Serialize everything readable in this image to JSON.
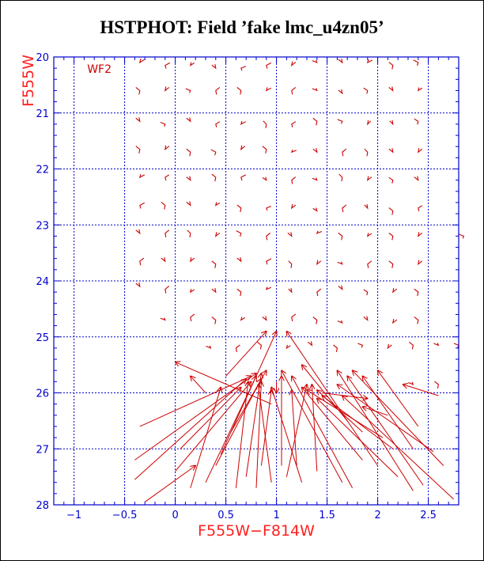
{
  "title": "HSTPHOT: Field ’fake lmc_u4zn05’",
  "chart_data": {
    "type": "scatter",
    "title": "HSTPHOT: Field ’fake lmc_u4zn05’",
    "xlabel": "F555W−F814W",
    "ylabel": "F555W",
    "xlim": [
      -1.2,
      2.8
    ],
    "ylim": [
      28,
      20
    ],
    "xticks": [
      -1,
      -0.5,
      0,
      0.5,
      1,
      1.5,
      2,
      2.5
    ],
    "xtick_labels": [
      "−1",
      "−0.5",
      "0",
      "0.5",
      "1",
      "1.5",
      "2",
      "2.5"
    ],
    "yticks": [
      20,
      21,
      22,
      23,
      24,
      25,
      26,
      27,
      28
    ],
    "ytick_labels": [
      "20",
      "21",
      "22",
      "23",
      "24",
      "25",
      "26",
      "27",
      "28"
    ],
    "grid": true,
    "annotation": "WF2",
    "colors": {
      "axis": "#0000cc",
      "data": "#cc0000",
      "label": "#ff2020",
      "title": "#000000"
    },
    "arrows": [
      {
        "x": -0.4,
        "y": 27.55,
        "tx": 0.7,
        "ty": 25.75
      },
      {
        "x": -0.35,
        "y": 26.6,
        "tx": 0.75,
        "ty": 25.7
      },
      {
        "x": -0.3,
        "y": 27.95,
        "tx": 0.2,
        "ty": 27.3
      },
      {
        "x": -0.4,
        "y": 27.2,
        "tx": 0.8,
        "ty": 25.65
      },
      {
        "x": 0.0,
        "y": 27.4,
        "tx": 0.75,
        "ty": 25.8
      },
      {
        "x": 0.05,
        "y": 27.0,
        "tx": 0.65,
        "ty": 25.9
      },
      {
        "x": 0.15,
        "y": 27.7,
        "tx": 0.45,
        "ty": 25.9
      },
      {
        "x": 0.3,
        "y": 27.6,
        "tx": 0.8,
        "ty": 25.7
      },
      {
        "x": 0.4,
        "y": 27.3,
        "tx": 0.85,
        "ty": 25.75
      },
      {
        "x": 0.45,
        "y": 27.1,
        "tx": 1.0,
        "ty": 24.9
      },
      {
        "x": 0.55,
        "y": 26.7,
        "tx": 0.9,
        "ty": 25.6
      },
      {
        "x": 0.5,
        "y": 25.7,
        "tx": 0.9,
        "ty": 24.9
      },
      {
        "x": 0.6,
        "y": 27.7,
        "tx": 0.72,
        "ty": 25.8
      },
      {
        "x": 0.7,
        "y": 27.5,
        "tx": 0.85,
        "ty": 25.65
      },
      {
        "x": 0.8,
        "y": 27.7,
        "tx": 0.85,
        "ty": 25.8
      },
      {
        "x": 0.85,
        "y": 27.3,
        "tx": 0.95,
        "ty": 25.95
      },
      {
        "x": 0.95,
        "y": 27.6,
        "tx": 0.82,
        "ty": 25.85
      },
      {
        "x": 1.05,
        "y": 27.3,
        "tx": 1.05,
        "ty": 25.7
      },
      {
        "x": 1.1,
        "y": 27.5,
        "tx": 1.3,
        "ty": 25.85
      },
      {
        "x": 1.2,
        "y": 27.3,
        "tx": 1.15,
        "ty": 25.95
      },
      {
        "x": 1.25,
        "y": 27.6,
        "tx": 0.95,
        "ty": 25.9
      },
      {
        "x": 1.4,
        "y": 27.4,
        "tx": 1.35,
        "ty": 25.85
      },
      {
        "x": 1.65,
        "y": 27.6,
        "tx": 1.05,
        "ty": 25.6
      },
      {
        "x": 1.75,
        "y": 27.7,
        "tx": 1.15,
        "ty": 25.7
      },
      {
        "x": 1.85,
        "y": 27.2,
        "tx": 1.25,
        "ty": 25.9
      },
      {
        "x": 1.85,
        "y": 26.7,
        "tx": 1.4,
        "ty": 25.95
      },
      {
        "x": 2.05,
        "y": 26.8,
        "tx": 1.3,
        "ty": 25.95
      },
      {
        "x": 2.15,
        "y": 27.0,
        "tx": 1.45,
        "ty": 26.05
      },
      {
        "x": 2.2,
        "y": 27.5,
        "tx": 1.4,
        "ty": 26.1
      },
      {
        "x": 2.35,
        "y": 27.75,
        "tx": 1.6,
        "ty": 25.6
      },
      {
        "x": 2.45,
        "y": 27.65,
        "tx": 1.7,
        "ty": 25.7
      },
      {
        "x": 2.55,
        "y": 27.05,
        "tx": 1.6,
        "ty": 25.85
      },
      {
        "x": 2.65,
        "y": 27.3,
        "tx": 1.75,
        "ty": 25.6
      },
      {
        "x": 2.75,
        "y": 27.9,
        "tx": 1.65,
        "ty": 26.05
      },
      {
        "x": 2.35,
        "y": 27.0,
        "tx": 1.85,
        "ty": 25.7
      },
      {
        "x": 2.4,
        "y": 26.6,
        "tx": 2.0,
        "ty": 25.6
      },
      {
        "x": 2.6,
        "y": 26.05,
        "tx": 2.25,
        "ty": 25.85
      },
      {
        "x": 2.0,
        "y": 27.3,
        "tx": 1.1,
        "ty": 24.9
      },
      {
        "x": 1.7,
        "y": 26.5,
        "tx": 1.25,
        "ty": 25.5
      },
      {
        "x": 1.45,
        "y": 26.0,
        "tx": 1.9,
        "ty": 26.1
      },
      {
        "x": 1.0,
        "y": 25.8,
        "tx": 1.0,
        "ty": 26.0
      },
      {
        "x": 0.3,
        "y": 26.0,
        "tx": 0.15,
        "ty": 25.7
      },
      {
        "x": 0.95,
        "y": 26.2,
        "tx": 0.0,
        "ty": 25.45
      },
      {
        "x": 2.1,
        "y": 26.4,
        "tx": 1.85,
        "ty": 26.25
      }
    ],
    "markers": [
      {
        "x": -0.35,
        "y": 20.1,
        "dx": 6,
        "dy": -5
      },
      {
        "x": -0.1,
        "y": 20.15,
        "dx": 6,
        "dy": 4
      },
      {
        "x": 0.15,
        "y": 20.15,
        "dx": 5,
        "dy": -4
      },
      {
        "x": 0.4,
        "y": 20.2,
        "dx": -5,
        "dy": -5
      },
      {
        "x": 0.65,
        "y": 20.2,
        "dx": 6,
        "dy": 3
      },
      {
        "x": 0.9,
        "y": 20.15,
        "dx": 6,
        "dy": 4
      },
      {
        "x": 1.15,
        "y": 20.15,
        "dx": 5,
        "dy": -5
      },
      {
        "x": 1.4,
        "y": 20.1,
        "dx": -6,
        "dy": -3
      },
      {
        "x": 1.65,
        "y": 20.1,
        "dx": -5,
        "dy": -5
      },
      {
        "x": 1.9,
        "y": 20.1,
        "dx": 6,
        "dy": -4
      },
      {
        "x": 2.15,
        "y": 20.15,
        "dx": -5,
        "dy": 5
      },
      {
        "x": 2.4,
        "y": 20.1,
        "dx": -6,
        "dy": 4
      },
      {
        "x": -0.35,
        "y": 20.6,
        "dx": -5,
        "dy": 5
      },
      {
        "x": -0.1,
        "y": 20.6,
        "dx": 5,
        "dy": -5
      },
      {
        "x": 0.15,
        "y": 20.6,
        "dx": -6,
        "dy": 3
      },
      {
        "x": 0.4,
        "y": 20.6,
        "dx": 5,
        "dy": 5
      },
      {
        "x": 0.65,
        "y": 20.6,
        "dx": -5,
        "dy": 5
      },
      {
        "x": 0.9,
        "y": 20.6,
        "dx": 6,
        "dy": -4
      },
      {
        "x": 1.15,
        "y": 20.6,
        "dx": 5,
        "dy": 5
      },
      {
        "x": 1.4,
        "y": 20.6,
        "dx": -6,
        "dy": -3
      },
      {
        "x": 1.65,
        "y": 20.65,
        "dx": -5,
        "dy": -5
      },
      {
        "x": 1.9,
        "y": 20.6,
        "dx": -5,
        "dy": 4
      },
      {
        "x": 2.15,
        "y": 20.6,
        "dx": -5,
        "dy": -5
      },
      {
        "x": 2.4,
        "y": 20.6,
        "dx": 5,
        "dy": -4
      },
      {
        "x": -0.35,
        "y": 21.15,
        "dx": -5,
        "dy": -5
      },
      {
        "x": -0.1,
        "y": 21.2,
        "dx": -6,
        "dy": 3
      },
      {
        "x": 0.15,
        "y": 21.15,
        "dx": -5,
        "dy": -5
      },
      {
        "x": 0.4,
        "y": 21.2,
        "dx": 5,
        "dy": 4
      },
      {
        "x": 0.65,
        "y": 21.2,
        "dx": 6,
        "dy": -4
      },
      {
        "x": 0.9,
        "y": 21.2,
        "dx": -4,
        "dy": 5
      },
      {
        "x": 1.15,
        "y": 21.2,
        "dx": 5,
        "dy": 4
      },
      {
        "x": 1.4,
        "y": 21.15,
        "dx": -5,
        "dy": 5
      },
      {
        "x": 1.65,
        "y": 21.15,
        "dx": -6,
        "dy": 3
      },
      {
        "x": 1.9,
        "y": 21.2,
        "dx": 4,
        "dy": -5
      },
      {
        "x": 2.15,
        "y": 21.2,
        "dx": -4,
        "dy": -5
      },
      {
        "x": 2.4,
        "y": 21.15,
        "dx": -5,
        "dy": 4
      },
      {
        "x": -0.35,
        "y": 21.65,
        "dx": -5,
        "dy": 5
      },
      {
        "x": -0.1,
        "y": 21.65,
        "dx": 5,
        "dy": -5
      },
      {
        "x": 0.15,
        "y": 21.7,
        "dx": -5,
        "dy": 5
      },
      {
        "x": 0.4,
        "y": 21.7,
        "dx": -6,
        "dy": 4
      },
      {
        "x": 0.65,
        "y": 21.65,
        "dx": 5,
        "dy": -5
      },
      {
        "x": 0.9,
        "y": 21.65,
        "dx": -5,
        "dy": 5
      },
      {
        "x": 1.15,
        "y": 21.7,
        "dx": 6,
        "dy": -3
      },
      {
        "x": 1.4,
        "y": 21.7,
        "dx": -5,
        "dy": -5
      },
      {
        "x": 1.65,
        "y": 21.7,
        "dx": 5,
        "dy": 5
      },
      {
        "x": 1.9,
        "y": 21.7,
        "dx": -4,
        "dy": 5
      },
      {
        "x": 2.15,
        "y": 21.7,
        "dx": -5,
        "dy": -5
      },
      {
        "x": 2.4,
        "y": 21.7,
        "dx": 5,
        "dy": -5
      },
      {
        "x": -0.35,
        "y": 22.15,
        "dx": 6,
        "dy": -4
      },
      {
        "x": -0.1,
        "y": 22.15,
        "dx": 5,
        "dy": 4
      },
      {
        "x": 0.15,
        "y": 22.2,
        "dx": -5,
        "dy": -5
      },
      {
        "x": 0.4,
        "y": 22.15,
        "dx": -5,
        "dy": 5
      },
      {
        "x": 0.65,
        "y": 22.15,
        "dx": 6,
        "dy": 4
      },
      {
        "x": 0.9,
        "y": 22.2,
        "dx": -5,
        "dy": -4
      },
      {
        "x": 1.15,
        "y": 22.2,
        "dx": 5,
        "dy": 5
      },
      {
        "x": 1.4,
        "y": 22.2,
        "dx": -6,
        "dy": -3
      },
      {
        "x": 1.65,
        "y": 22.15,
        "dx": -4,
        "dy": 5
      },
      {
        "x": 1.9,
        "y": 22.2,
        "dx": 5,
        "dy": -5
      },
      {
        "x": 2.15,
        "y": 22.2,
        "dx": -5,
        "dy": 4
      },
      {
        "x": 2.4,
        "y": 22.2,
        "dx": -5,
        "dy": -5
      },
      {
        "x": -0.35,
        "y": 22.65,
        "dx": 6,
        "dy": 4
      },
      {
        "x": -0.1,
        "y": 22.65,
        "dx": -5,
        "dy": 5
      },
      {
        "x": 0.15,
        "y": 22.65,
        "dx": -5,
        "dy": -5
      },
      {
        "x": 0.4,
        "y": 22.65,
        "dx": 5,
        "dy": -4
      },
      {
        "x": 0.65,
        "y": 22.7,
        "dx": -5,
        "dy": 5
      },
      {
        "x": 0.9,
        "y": 22.7,
        "dx": 6,
        "dy": 3
      },
      {
        "x": 1.15,
        "y": 22.7,
        "dx": 5,
        "dy": -5
      },
      {
        "x": 1.4,
        "y": 22.75,
        "dx": -5,
        "dy": -4
      },
      {
        "x": 1.65,
        "y": 22.7,
        "dx": 5,
        "dy": 5
      },
      {
        "x": 1.9,
        "y": 22.7,
        "dx": -4,
        "dy": -5
      },
      {
        "x": 2.15,
        "y": 22.75,
        "dx": -5,
        "dy": 5
      },
      {
        "x": 2.4,
        "y": 22.7,
        "dx": 5,
        "dy": 4
      },
      {
        "x": -0.35,
        "y": 23.15,
        "dx": -5,
        "dy": -5
      },
      {
        "x": -0.1,
        "y": 23.15,
        "dx": 5,
        "dy": 5
      },
      {
        "x": 0.15,
        "y": 23.15,
        "dx": -4,
        "dy": 5
      },
      {
        "x": 0.4,
        "y": 23.2,
        "dx": 5,
        "dy": -5
      },
      {
        "x": 0.65,
        "y": 23.15,
        "dx": -6,
        "dy": 4
      },
      {
        "x": 0.9,
        "y": 23.2,
        "dx": 5,
        "dy": 5
      },
      {
        "x": 1.15,
        "y": 23.2,
        "dx": -5,
        "dy": -5
      },
      {
        "x": 1.4,
        "y": 23.15,
        "dx": 6,
        "dy": -3
      },
      {
        "x": 1.65,
        "y": 23.2,
        "dx": -5,
        "dy": 5
      },
      {
        "x": 1.9,
        "y": 23.2,
        "dx": 5,
        "dy": -4
      },
      {
        "x": 2.15,
        "y": 23.2,
        "dx": -5,
        "dy": 5
      },
      {
        "x": 2.4,
        "y": 23.2,
        "dx": 5,
        "dy": -5
      },
      {
        "x": -0.35,
        "y": 23.65,
        "dx": 5,
        "dy": 5
      },
      {
        "x": -0.1,
        "y": 23.65,
        "dx": -5,
        "dy": -5
      },
      {
        "x": 0.15,
        "y": 23.65,
        "dx": 5,
        "dy": -5
      },
      {
        "x": 0.4,
        "y": 23.7,
        "dx": -5,
        "dy": 5
      },
      {
        "x": 0.65,
        "y": 23.65,
        "dx": -5,
        "dy": -5
      },
      {
        "x": 0.9,
        "y": 23.65,
        "dx": 6,
        "dy": 4
      },
      {
        "x": 1.15,
        "y": 23.7,
        "dx": -4,
        "dy": 5
      },
      {
        "x": 1.4,
        "y": 23.7,
        "dx": 5,
        "dy": -5
      },
      {
        "x": 1.65,
        "y": 23.7,
        "dx": -6,
        "dy": -3
      },
      {
        "x": 1.9,
        "y": 23.7,
        "dx": 5,
        "dy": 5
      },
      {
        "x": 2.15,
        "y": 23.7,
        "dx": -5,
        "dy": 5
      },
      {
        "x": 2.4,
        "y": 23.7,
        "dx": 5,
        "dy": -5
      },
      {
        "x": -0.35,
        "y": 24.1,
        "dx": -5,
        "dy": -5
      },
      {
        "x": -0.1,
        "y": 24.15,
        "dx": 5,
        "dy": 5
      },
      {
        "x": 0.15,
        "y": 24.2,
        "dx": 5,
        "dy": -4
      },
      {
        "x": 0.4,
        "y": 24.2,
        "dx": -5,
        "dy": -5
      },
      {
        "x": 0.65,
        "y": 24.2,
        "dx": -5,
        "dy": 5
      },
      {
        "x": 0.9,
        "y": 24.15,
        "dx": 6,
        "dy": -3
      },
      {
        "x": 1.15,
        "y": 24.2,
        "dx": -4,
        "dy": -5
      },
      {
        "x": 1.4,
        "y": 24.2,
        "dx": 5,
        "dy": 5
      },
      {
        "x": 1.65,
        "y": 24.15,
        "dx": -5,
        "dy": -5
      },
      {
        "x": 1.9,
        "y": 24.2,
        "dx": -5,
        "dy": 4
      },
      {
        "x": 2.15,
        "y": 24.2,
        "dx": 5,
        "dy": -5
      },
      {
        "x": 2.4,
        "y": 24.2,
        "dx": -5,
        "dy": 5
      },
      {
        "x": -0.1,
        "y": 24.7,
        "dx": -6,
        "dy": -3
      },
      {
        "x": 0.15,
        "y": 24.65,
        "dx": 5,
        "dy": 5
      },
      {
        "x": 0.4,
        "y": 24.7,
        "dx": -5,
        "dy": 5
      },
      {
        "x": 0.65,
        "y": 24.7,
        "dx": 5,
        "dy": -4
      },
      {
        "x": 0.9,
        "y": 24.7,
        "dx": -5,
        "dy": -5
      },
      {
        "x": 1.15,
        "y": 24.65,
        "dx": 5,
        "dy": 5
      },
      {
        "x": 1.4,
        "y": 24.7,
        "dx": -5,
        "dy": 5
      },
      {
        "x": 1.65,
        "y": 24.75,
        "dx": -6,
        "dy": -3
      },
      {
        "x": 1.9,
        "y": 24.7,
        "dx": -5,
        "dy": -5
      },
      {
        "x": 2.15,
        "y": 24.75,
        "dx": 5,
        "dy": -5
      },
      {
        "x": 2.4,
        "y": 24.7,
        "dx": -5,
        "dy": 5
      },
      {
        "x": 0.35,
        "y": 25.2,
        "dx": -6,
        "dy": -3
      },
      {
        "x": 0.6,
        "y": 25.2,
        "dx": 5,
        "dy": 5
      },
      {
        "x": 0.85,
        "y": 25.15,
        "dx": -5,
        "dy": 5
      },
      {
        "x": 1.1,
        "y": 25.2,
        "dx": 5,
        "dy": -4
      },
      {
        "x": 1.35,
        "y": 25.15,
        "dx": -5,
        "dy": -5
      },
      {
        "x": 1.6,
        "y": 25.2,
        "dx": -5,
        "dy": 5
      },
      {
        "x": 1.85,
        "y": 25.15,
        "dx": -6,
        "dy": 3
      },
      {
        "x": 2.1,
        "y": 25.2,
        "dx": 5,
        "dy": -5
      },
      {
        "x": 2.35,
        "y": 25.15,
        "dx": -5,
        "dy": 5
      },
      {
        "x": 2.6,
        "y": 25.15,
        "dx": -6,
        "dy": -3
      },
      {
        "x": 2.8,
        "y": 25.15,
        "dx": -6,
        "dy": 3
      },
      {
        "x": 2.85,
        "y": 23.2,
        "dx": -6,
        "dy": 3
      },
      {
        "x": 2.35,
        "y": 25.85,
        "dx": -6,
        "dy": -3
      },
      {
        "x": 2.6,
        "y": 25.85,
        "dx": -5,
        "dy": 5
      }
    ]
  }
}
